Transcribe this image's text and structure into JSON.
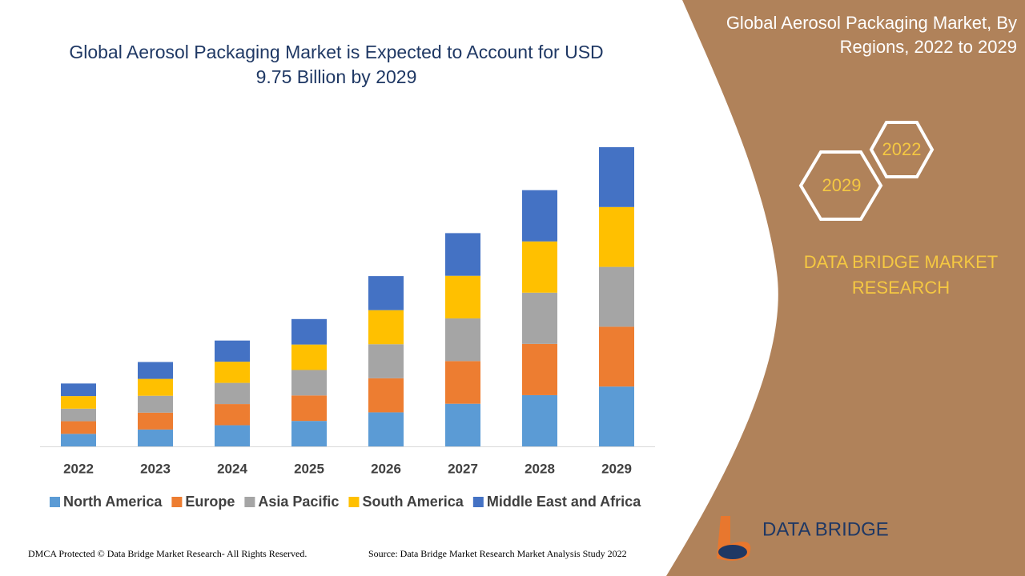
{
  "chart_data": {
    "type": "stacked-bar",
    "title": "Global Aerosol Packaging Market is Expected to Account for USD 9.75 Billion by 2029",
    "categories": [
      "2022",
      "2023",
      "2024",
      "2025",
      "2026",
      "2027",
      "2028",
      "2029"
    ],
    "series": [
      {
        "name": "North America",
        "color": "#5b9bd5",
        "values": [
          0.41,
          0.55,
          0.69,
          0.83,
          1.11,
          1.39,
          1.67,
          1.95
        ]
      },
      {
        "name": "Europe",
        "color": "#ed7d31",
        "values": [
          0.41,
          0.55,
          0.69,
          0.83,
          1.11,
          1.39,
          1.67,
          1.95
        ]
      },
      {
        "name": "Asia Pacific",
        "color": "#a5a5a5",
        "values": [
          0.41,
          0.55,
          0.69,
          0.83,
          1.11,
          1.39,
          1.67,
          1.95
        ]
      },
      {
        "name": "South America",
        "color": "#ffc000",
        "values": [
          0.41,
          0.55,
          0.69,
          0.83,
          1.11,
          1.39,
          1.67,
          1.95
        ]
      },
      {
        "name": "Middle East and Africa",
        "color": "#4472c4",
        "values": [
          0.41,
          0.55,
          0.69,
          0.83,
          1.11,
          1.39,
          1.67,
          1.95
        ]
      }
    ],
    "ylim": [
      0,
      9.75
    ]
  },
  "panel": {
    "title": "Global Aerosol Packaging Market, By Regions, 2022 to 2029",
    "hex_start": "2022",
    "hex_end": "2029",
    "brand": "DATA BRIDGE MARKET RESEARCH"
  },
  "logo": {
    "name": "DATA BRIDGE"
  },
  "footer": {
    "copyright": "DMCA Protected © Data Bridge Market Research- All Rights Reserved.",
    "source": "Source: Data Bridge Market Research Market Analysis Study 2022"
  }
}
